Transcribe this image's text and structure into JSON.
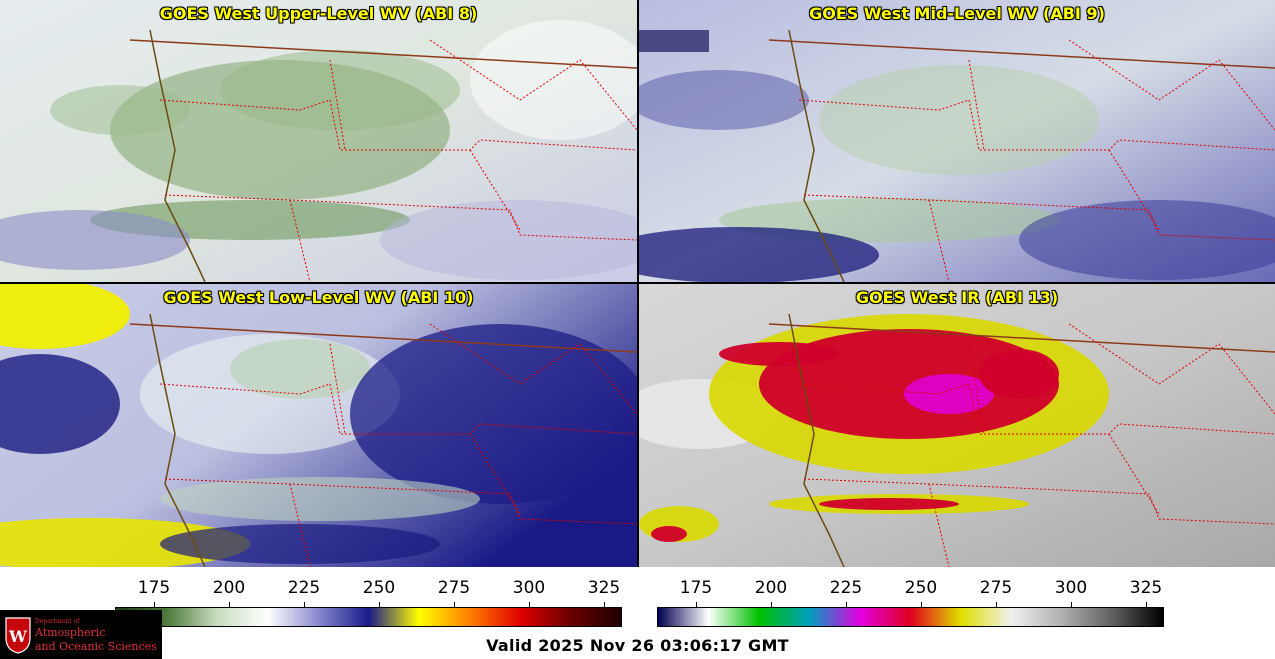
{
  "panels": {
    "upper": {
      "title": "GOES West Upper-Level WV (ABI 8)"
    },
    "mid": {
      "title": "GOES West Mid-Level WV (ABI 9)"
    },
    "low": {
      "title": "GOES West Low-Level WV (ABI 10)"
    },
    "ir": {
      "title": "GOES West IR (ABI 13)"
    }
  },
  "colorbar_wv": {
    "ticks": [
      "175",
      "200",
      "225",
      "250",
      "275",
      "300",
      "325"
    ],
    "colors": [
      "#203a18",
      "#4e7a3a",
      "#c8dcc0",
      "#ffffff",
      "#8a8ad0",
      "#1a1a8a",
      "#ffff00",
      "#ff8000",
      "#e00000",
      "#6a0000",
      "#200000"
    ]
  },
  "colorbar_ir": {
    "ticks": [
      "175",
      "200",
      "225",
      "250",
      "275",
      "300",
      "325"
    ],
    "colors": [
      "#000050",
      "#ffffff",
      "#00c000",
      "#00a0c0",
      "#e000e0",
      "#e00020",
      "#e0e000",
      "#f0f0f0",
      "#b0b0b0",
      "#606060",
      "#000000"
    ]
  },
  "footer": {
    "valid_time": "Valid 2025 Nov 26 03:06:17 GMT"
  },
  "logo": {
    "line1": "Department of",
    "line2": "Atmospheric",
    "line3": "and Oceanic Sciences"
  }
}
